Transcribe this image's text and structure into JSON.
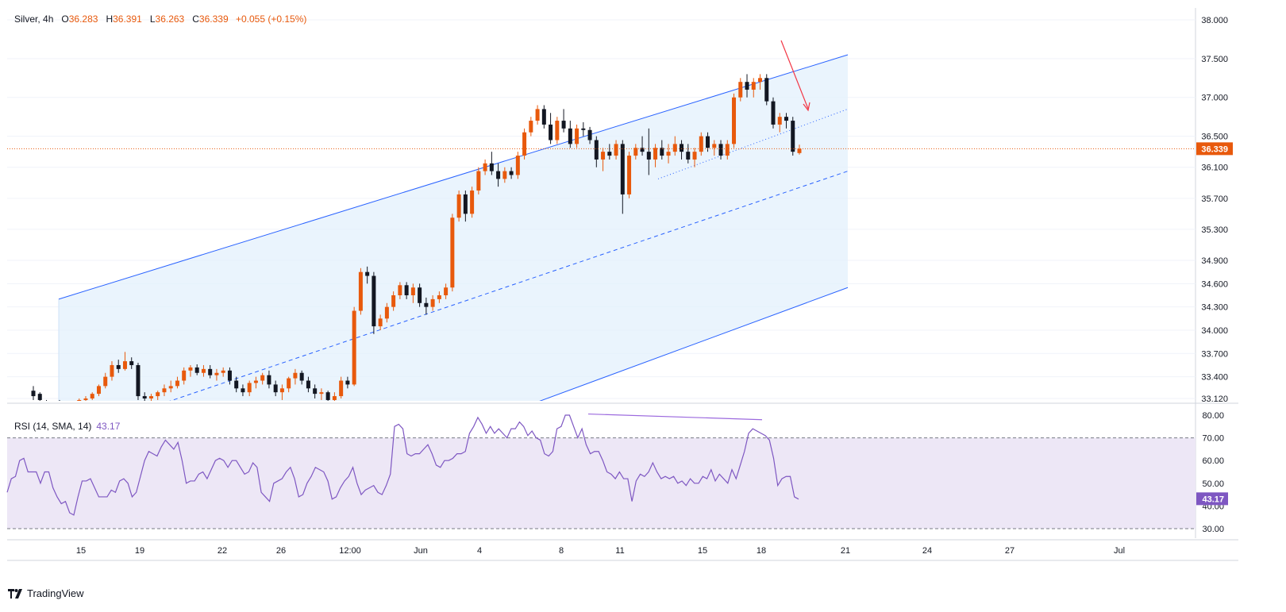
{
  "header": {
    "symbol": "Silver",
    "interval": "4h",
    "open_label": "O",
    "open": "36.283",
    "high_label": "H",
    "high": "36.391",
    "low_label": "L",
    "low": "36.263",
    "close_label": "C",
    "close": "36.339",
    "change": "+0.055 (+0.15%)"
  },
  "rsi_header": {
    "title": "RSI (14, SMA, 14)",
    "value": "43.17"
  },
  "brand": {
    "name": "TradingView"
  },
  "colors": {
    "up": "#e8590c",
    "down": "#131722",
    "channel": "#2962ff",
    "channel_fill": "#e3f0fc",
    "rsi_line": "#7e57c2",
    "rsi_band": "#ede7f6",
    "arrow": "#f23645",
    "price_line": "#e8590c"
  },
  "chart_data": [
    {
      "type": "candlestick",
      "title": "Silver, 4h",
      "ylim": [
        33.12,
        38.0
      ],
      "y_ticks": [
        "38.000",
        "37.500",
        "37.000",
        "36.500",
        "36.100",
        "35.700",
        "35.300",
        "34.900",
        "34.600",
        "34.300",
        "34.000",
        "33.700",
        "33.400",
        "33.120"
      ],
      "x_ticks": [
        "15",
        "19",
        "22",
        "26",
        "12:00",
        "Jun",
        "4",
        "8",
        "11",
        "15",
        "18",
        "21",
        "24",
        "27",
        "Jul"
      ],
      "last_price": "36.339",
      "ohlc": [
        [
          33.22,
          33.28,
          33.1,
          33.15
        ],
        [
          33.18,
          33.2,
          33.05,
          33.1
        ],
        [
          33.05,
          33.1,
          32.95,
          33.0
        ],
        [
          33.0,
          33.08,
          32.9,
          33.05
        ],
        [
          33.05,
          33.1,
          32.95,
          33.02
        ],
        [
          33.0,
          33.05,
          32.9,
          32.98
        ],
        [
          32.98,
          33.05,
          32.9,
          33.0
        ],
        [
          33.0,
          33.12,
          32.95,
          33.1
        ],
        [
          33.1,
          33.15,
          33.05,
          33.12
        ],
        [
          33.12,
          33.2,
          33.1,
          33.18
        ],
        [
          33.18,
          33.3,
          33.15,
          33.28
        ],
        [
          33.28,
          33.45,
          33.25,
          33.4
        ],
        [
          33.4,
          33.6,
          33.35,
          33.55
        ],
        [
          33.55,
          33.62,
          33.45,
          33.5
        ],
        [
          33.5,
          33.72,
          33.48,
          33.6
        ],
        [
          33.6,
          33.65,
          33.5,
          33.55
        ],
        [
          33.55,
          33.58,
          33.1,
          33.15
        ],
        [
          33.15,
          33.2,
          33.05,
          33.12
        ],
        [
          33.12,
          33.18,
          33.05,
          33.15
        ],
        [
          33.15,
          33.22,
          33.1,
          33.2
        ],
        [
          33.2,
          33.3,
          33.15,
          33.25
        ],
        [
          33.25,
          33.35,
          33.2,
          33.28
        ],
        [
          33.28,
          33.4,
          33.25,
          33.35
        ],
        [
          33.35,
          33.52,
          33.3,
          33.48
        ],
        [
          33.48,
          33.55,
          33.4,
          33.52
        ],
        [
          33.52,
          33.56,
          33.42,
          33.45
        ],
        [
          33.45,
          33.55,
          33.4,
          33.5
        ],
        [
          33.5,
          33.55,
          33.38,
          33.42
        ],
        [
          33.42,
          33.5,
          33.35,
          33.45
        ],
        [
          33.45,
          33.52,
          33.4,
          33.48
        ],
        [
          33.48,
          33.52,
          33.3,
          33.35
        ],
        [
          33.35,
          33.4,
          33.2,
          33.25
        ],
        [
          33.25,
          33.3,
          33.15,
          33.2
        ],
        [
          33.2,
          33.35,
          33.15,
          33.32
        ],
        [
          33.32,
          33.4,
          33.25,
          33.35
        ],
        [
          33.35,
          33.45,
          33.3,
          33.42
        ],
        [
          33.42,
          33.48,
          33.25,
          33.3
        ],
        [
          33.3,
          33.35,
          33.15,
          33.2
        ],
        [
          33.2,
          33.3,
          33.1,
          33.25
        ],
        [
          33.25,
          33.4,
          33.2,
          33.38
        ],
        [
          33.38,
          33.5,
          33.3,
          33.45
        ],
        [
          33.45,
          33.48,
          33.3,
          33.35
        ],
        [
          33.35,
          33.4,
          33.2,
          33.25
        ],
        [
          33.25,
          33.3,
          33.12,
          33.18
        ],
        [
          33.18,
          33.25,
          33.1,
          33.2
        ],
        [
          33.2,
          33.22,
          33.05,
          33.1
        ],
        [
          33.1,
          33.2,
          33.05,
          33.15
        ],
        [
          33.15,
          33.4,
          33.12,
          33.35
        ],
        [
          33.35,
          33.4,
          33.25,
          33.3
        ],
        [
          33.3,
          34.3,
          33.28,
          34.25
        ],
        [
          34.25,
          34.8,
          34.2,
          34.75
        ],
        [
          34.75,
          34.82,
          34.6,
          34.7
        ],
        [
          34.7,
          34.75,
          33.95,
          34.05
        ],
        [
          34.05,
          34.2,
          34.0,
          34.15
        ],
        [
          34.15,
          34.35,
          34.1,
          34.3
        ],
        [
          34.3,
          34.5,
          34.25,
          34.45
        ],
        [
          34.45,
          34.62,
          34.4,
          34.58
        ],
        [
          34.58,
          34.62,
          34.4,
          34.45
        ],
        [
          34.45,
          34.6,
          34.35,
          34.55
        ],
        [
          34.55,
          34.6,
          34.3,
          34.35
        ],
        [
          34.35,
          34.42,
          34.2,
          34.3
        ],
        [
          34.3,
          34.45,
          34.25,
          34.4
        ],
        [
          34.4,
          34.5,
          34.35,
          34.45
        ],
        [
          34.45,
          34.6,
          34.4,
          34.55
        ],
        [
          34.55,
          35.5,
          34.5,
          35.45
        ],
        [
          35.45,
          35.8,
          35.4,
          35.75
        ],
        [
          35.75,
          35.8,
          35.4,
          35.5
        ],
        [
          35.5,
          35.85,
          35.45,
          35.8
        ],
        [
          35.8,
          36.1,
          35.75,
          36.05
        ],
        [
          36.05,
          36.2,
          36.0,
          36.15
        ],
        [
          36.15,
          36.3,
          36.0,
          36.05
        ],
        [
          36.05,
          36.15,
          35.85,
          35.95
        ],
        [
          35.95,
          36.1,
          35.9,
          36.05
        ],
        [
          36.05,
          36.1,
          35.95,
          36.0
        ],
        [
          36.0,
          36.3,
          35.95,
          36.25
        ],
        [
          36.25,
          36.6,
          36.2,
          36.55
        ],
        [
          36.55,
          36.75,
          36.5,
          36.7
        ],
        [
          36.7,
          36.9,
          36.65,
          36.85
        ],
        [
          36.85,
          36.9,
          36.6,
          36.65
        ],
        [
          36.65,
          36.8,
          36.4,
          36.45
        ],
        [
          36.45,
          36.75,
          36.4,
          36.7
        ],
        [
          36.7,
          36.85,
          36.55,
          36.6
        ],
        [
          36.6,
          36.7,
          36.35,
          36.4
        ],
        [
          36.4,
          36.65,
          36.35,
          36.6
        ],
        [
          36.6,
          36.68,
          36.5,
          36.58
        ],
        [
          36.58,
          36.62,
          36.4,
          36.45
        ],
        [
          36.45,
          36.5,
          36.1,
          36.2
        ],
        [
          36.2,
          36.35,
          36.05,
          36.3
        ],
        [
          36.3,
          36.4,
          36.2,
          36.25
        ],
        [
          36.25,
          36.45,
          36.2,
          36.4
        ],
        [
          36.4,
          36.45,
          35.5,
          35.75
        ],
        [
          35.75,
          36.3,
          35.7,
          36.25
        ],
        [
          36.25,
          36.4,
          36.2,
          36.35
        ],
        [
          36.35,
          36.5,
          36.25,
          36.3
        ],
        [
          36.3,
          36.6,
          36.0,
          36.2
        ],
        [
          36.2,
          36.4,
          36.1,
          36.35
        ],
        [
          36.35,
          36.45,
          36.2,
          36.25
        ],
        [
          36.25,
          36.4,
          36.15,
          36.3
        ],
        [
          36.3,
          36.5,
          36.25,
          36.4
        ],
        [
          36.4,
          36.45,
          36.2,
          36.3
        ],
        [
          36.3,
          36.4,
          36.15,
          36.2
        ],
        [
          36.2,
          36.35,
          36.1,
          36.3
        ],
        [
          36.3,
          36.55,
          36.25,
          36.5
        ],
        [
          36.5,
          36.55,
          36.3,
          36.35
        ],
        [
          36.35,
          36.45,
          36.25,
          36.4
        ],
        [
          36.4,
          36.45,
          36.2,
          36.25
        ],
        [
          36.25,
          36.45,
          36.2,
          36.4
        ],
        [
          36.4,
          37.05,
          36.35,
          37.0
        ],
        [
          37.0,
          37.25,
          36.95,
          37.2
        ],
        [
          37.2,
          37.3,
          37.0,
          37.1
        ],
        [
          37.1,
          37.25,
          37.0,
          37.2
        ],
        [
          37.2,
          37.3,
          37.1,
          37.25
        ],
        [
          37.25,
          37.3,
          36.9,
          36.95
        ],
        [
          36.95,
          37.0,
          36.6,
          36.65
        ],
        [
          36.65,
          36.8,
          36.55,
          36.75
        ],
        [
          36.75,
          36.8,
          36.6,
          36.7
        ],
        [
          36.7,
          36.75,
          36.25,
          36.3
        ],
        [
          36.283,
          36.391,
          36.263,
          36.339
        ]
      ],
      "channel": {
        "upper": [
          [
            "2025-05-14",
            34.4
          ],
          [
            "2025-06-21",
            37.55
          ]
        ],
        "middle": [
          [
            "2025-05-14",
            32.6
          ],
          [
            "2025-06-21",
            36.05
          ]
        ],
        "lower": [
          [
            "2025-05-14",
            30.8
          ],
          [
            "2025-06-21",
            34.55
          ]
        ]
      },
      "trendline_dotted": [
        [
          "2025-06-13",
          35.95
        ],
        [
          "2025-06-21",
          36.85
        ]
      ]
    },
    {
      "type": "line",
      "title": "RSI (14, SMA, 14)",
      "ylim": [
        25,
        85
      ],
      "y_ticks": [
        "80.00",
        "70.00",
        "60.00",
        "50.00",
        "40.00",
        "30.00"
      ],
      "bands": [
        30,
        70
      ],
      "last_value": "43.17",
      "values": [
        46,
        52,
        53,
        60,
        61,
        55,
        55,
        55,
        50,
        55,
        55,
        48,
        44,
        41,
        42,
        37,
        36,
        44,
        51,
        51,
        52,
        48,
        44,
        44,
        44,
        47,
        46,
        51,
        52,
        50,
        44,
        46,
        53,
        60,
        64,
        63,
        62,
        66,
        69,
        67,
        65,
        68,
        60,
        50,
        51,
        51,
        54,
        55,
        52,
        56,
        60,
        61,
        60,
        57,
        60,
        60,
        57,
        54,
        55,
        59,
        57,
        46,
        44,
        42,
        50,
        51,
        52,
        55,
        57,
        52,
        44,
        45,
        50,
        53,
        57,
        56,
        55,
        51,
        43,
        44,
        48,
        51,
        53,
        57,
        50,
        45,
        47,
        48,
        49,
        46,
        45,
        49,
        54,
        75,
        76,
        74,
        63,
        62,
        63,
        63,
        65,
        67,
        63,
        58,
        57,
        60,
        60,
        61,
        63,
        63,
        64,
        72,
        75,
        79,
        76,
        72,
        75,
        72,
        74,
        72,
        70,
        74,
        74,
        77,
        75,
        71,
        73,
        70,
        69,
        63,
        62,
        64,
        74,
        75,
        80,
        80,
        75,
        70,
        74,
        67,
        63,
        64,
        64,
        60,
        55,
        54,
        52,
        55,
        52,
        52,
        42,
        51,
        54,
        53,
        55,
        59,
        55,
        52,
        53,
        52,
        53,
        50,
        51,
        49,
        52,
        50,
        50,
        53,
        52,
        56,
        51,
        54,
        52,
        50,
        56,
        52,
        58,
        64,
        72,
        74,
        73,
        72,
        71,
        69,
        61,
        49,
        52,
        53,
        53,
        44,
        43
      ],
      "divergence_line": [
        [
          80.5,
          78.0
        ]
      ]
    }
  ]
}
